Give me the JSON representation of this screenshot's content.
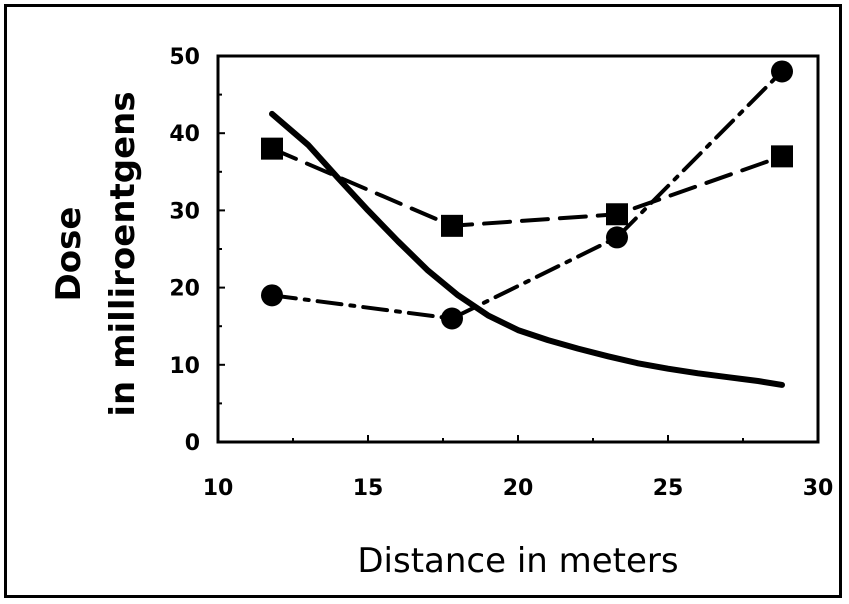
{
  "chart_data": {
    "type": "line",
    "title": "",
    "xlabel": "Distance in meters",
    "ylabel_lines": [
      "Dose",
      "in milliroentgens"
    ],
    "xlim": [
      10,
      30
    ],
    "ylim": [
      0,
      50
    ],
    "x_ticks": [
      10,
      15,
      20,
      25,
      30
    ],
    "y_ticks": [
      0,
      10,
      20,
      30,
      40,
      50
    ],
    "grid": false,
    "legend": "none",
    "series": [
      {
        "style": "solid",
        "marker": "none",
        "color": "#000000",
        "x": [
          11.8,
          13,
          14,
          15,
          16,
          17,
          18,
          19,
          20,
          21,
          22,
          23,
          24,
          25,
          26,
          27,
          28,
          28.8
        ],
        "y": [
          42.5,
          38.5,
          34.2,
          30.0,
          26.0,
          22.2,
          19.0,
          16.4,
          14.5,
          13.2,
          12.1,
          11.1,
          10.2,
          9.5,
          8.9,
          8.4,
          7.9,
          7.4
        ]
      },
      {
        "style": "dashed",
        "marker": "square",
        "color": "#000000",
        "x": [
          11.8,
          17.8,
          23.3,
          28.8
        ],
        "y": [
          38,
          28,
          29.5,
          37
        ]
      },
      {
        "style": "dash-dot",
        "marker": "circle",
        "color": "#000000",
        "x": [
          11.8,
          17.8,
          23.3,
          28.8
        ],
        "y": [
          19,
          16,
          26.5,
          48
        ]
      }
    ]
  }
}
